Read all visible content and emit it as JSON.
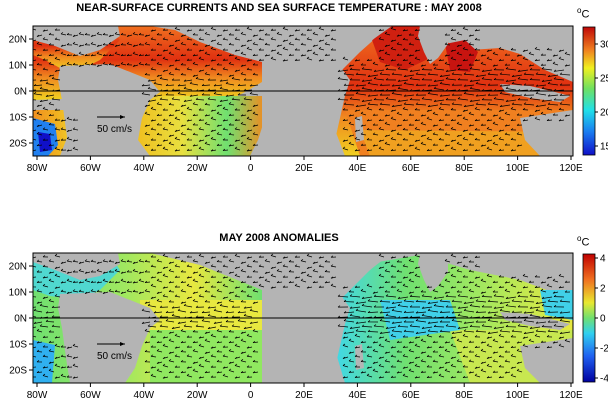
{
  "panels": [
    {
      "id": "sst",
      "title": "NEAR-SURFACE CURRENTS AND SEA SURFACE TEMPERATURE : MAY 2008",
      "colorbar": {
        "ticks": [
          "30",
          "25",
          "20",
          "15"
        ],
        "unit_sup": "o",
        "unit": "C"
      },
      "scale_label": "50 cm/s"
    },
    {
      "id": "anomaly",
      "title": "MAY 2008 ANOMALIES",
      "colorbar": {
        "ticks": [
          "4",
          "2",
          "0",
          "-2",
          "-4"
        ],
        "unit_sup": "o",
        "unit": "C"
      },
      "scale_label": "50 cm/s"
    }
  ],
  "x_ticks": [
    "80W",
    "60W",
    "40W",
    "20W",
    "0",
    "20E",
    "40E",
    "60E",
    "80E",
    "100E",
    "120E"
  ],
  "y_ticks": [
    "20N",
    "10N",
    "0N",
    "10S",
    "20S"
  ],
  "colors": {
    "land": "#b4b4b4",
    "sst_warm": "#e8401c",
    "sst_hot": "#c8140c",
    "sst_mid": "#f08a24",
    "anom_base": "#7fe07a",
    "anom_cyan": "#4ad8e8",
    "anom_yellow": "#e8e840"
  }
}
